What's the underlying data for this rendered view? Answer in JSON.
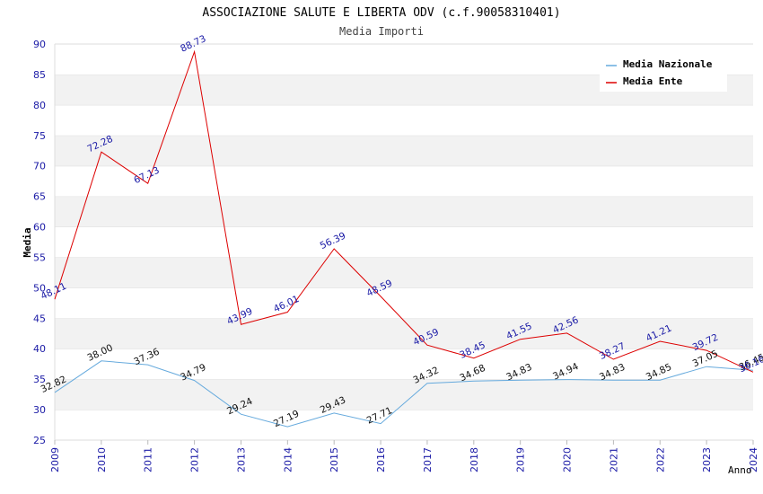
{
  "chart_data": {
    "type": "line",
    "title": "ASSOCIAZIONE SALUTE E LIBERTA ODV (c.f.90058310401)",
    "subtitle": "Media Importi",
    "xlabel": "Anno",
    "ylabel": "Media",
    "ylim": [
      25,
      90
    ],
    "y_ticks": [
      25,
      30,
      35,
      40,
      45,
      50,
      55,
      60,
      65,
      70,
      75,
      80,
      85,
      90
    ],
    "categories": [
      "2009",
      "2010",
      "2011",
      "2012",
      "2013",
      "2014",
      "2015",
      "2016",
      "2017",
      "2018",
      "2019",
      "2020",
      "2021",
      "2022",
      "2023",
      "2024"
    ],
    "grid": "horizontal bands",
    "legend_position": "top-right",
    "series": [
      {
        "name": "Media Nazionale",
        "color": "#66aadd",
        "label_color": "#111111",
        "values": [
          32.82,
          38.0,
          37.36,
          34.79,
          29.24,
          27.19,
          29.43,
          27.71,
          34.32,
          34.68,
          34.83,
          34.94,
          34.83,
          34.85,
          37.05,
          36.45
        ],
        "labels": [
          "32.82",
          "38.00",
          "37.36",
          "34.79",
          "29.24",
          "27.19",
          "29.43",
          "27.71",
          "34.32",
          "34.68",
          "34.83",
          "34.94",
          "34.83",
          "34.85",
          "37.05",
          "36.45"
        ]
      },
      {
        "name": "Media Ente",
        "color": "#dd0000",
        "label_color": "#1a1aa6",
        "values": [
          48.11,
          72.28,
          67.13,
          88.73,
          43.99,
          46.01,
          56.39,
          48.59,
          40.59,
          38.45,
          41.55,
          42.56,
          38.27,
          41.21,
          39.72,
          36.16
        ],
        "labels": [
          "48.11",
          "72.28",
          "67.13",
          "88.73",
          "43.99",
          "46.01",
          "56.39",
          "48.59",
          "40.59",
          "38.45",
          "41.55",
          "42.56",
          "38.27",
          "41.21",
          "39.72",
          "36.16"
        ]
      }
    ]
  }
}
